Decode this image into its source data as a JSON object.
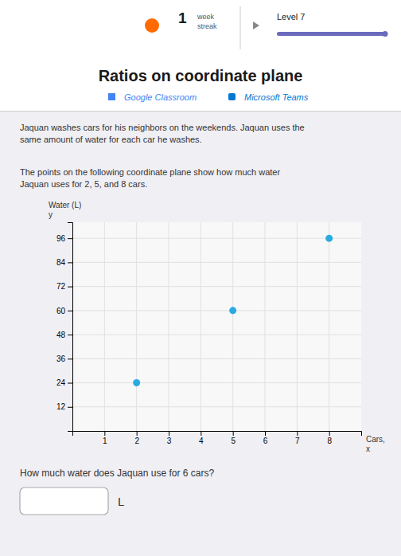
{
  "page": {
    "streak": "1",
    "streak_label": "week\nstreak",
    "level": "Level 7",
    "sources": [
      "Google Classroom",
      "Microsoft Teams"
    ],
    "paragraphs": [
      "Jaquan washes cars for his neighbors on the weekends. Jaquan uses the\nsame amount of water for each car he washes.",
      "The points on the following coordinate plane show how much water\nJaquan uses for 2, 5, and 8 cars."
    ],
    "question": "How much water does Jaquan use for 6 cars?",
    "answer_unit": "L"
  },
  "chart_data": {
    "type": "scatter",
    "title": "Ratios on coordinate plane",
    "xlabel": "Cars,\nx",
    "ylabel": "Water (L)\ny",
    "x": [
      2,
      5,
      8
    ],
    "values": [
      24,
      60,
      96
    ],
    "color": "#29ABE2",
    "xlim": [
      0,
      9
    ],
    "ylim": [
      0,
      104
    ],
    "xticks": [
      1,
      2,
      3,
      4,
      5,
      6,
      7,
      8
    ],
    "yticks": [
      12,
      24,
      36,
      48,
      60,
      72,
      84,
      96
    ],
    "grid": true
  }
}
